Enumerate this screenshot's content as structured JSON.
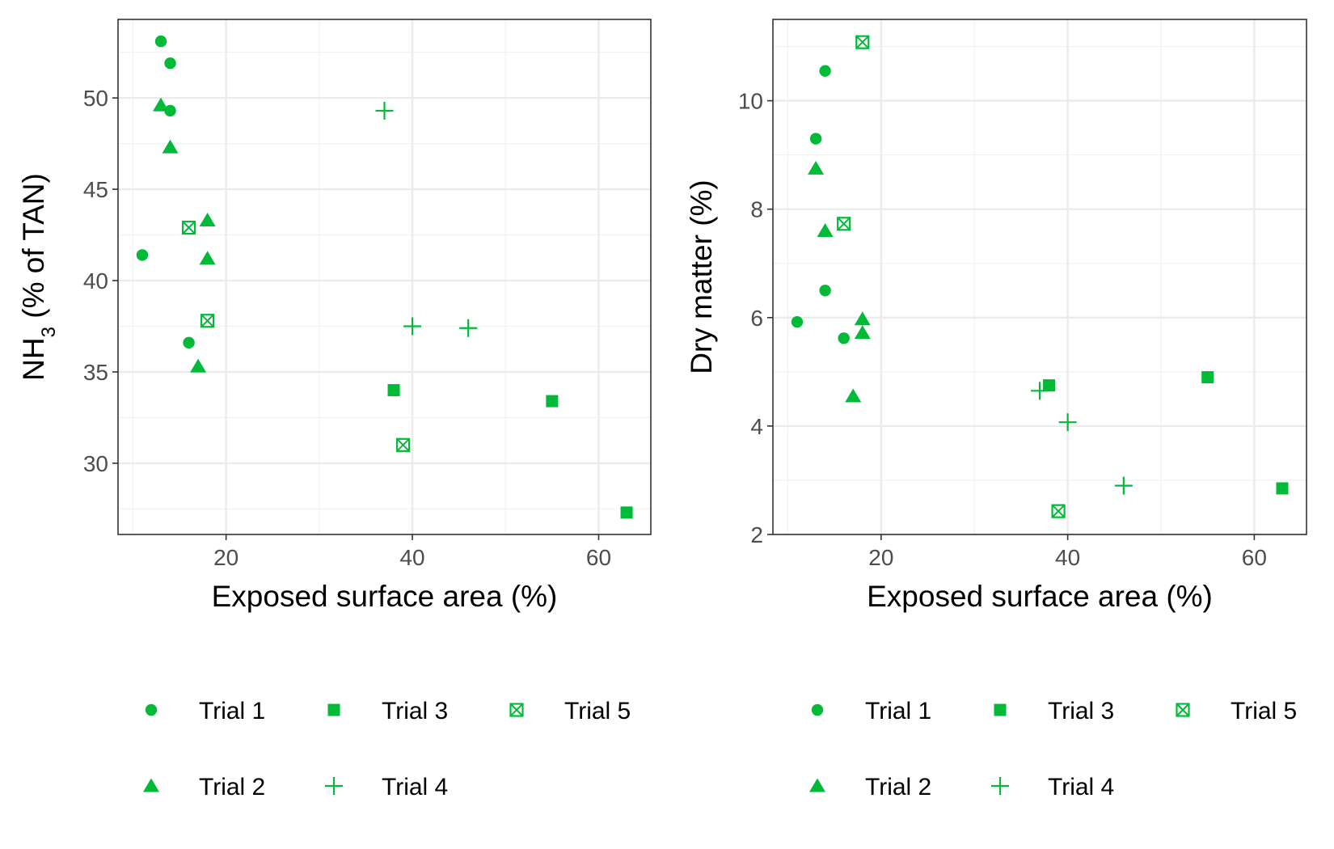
{
  "colors": {
    "points": "#00BA38"
  },
  "legend_title": "",
  "legend": [
    {
      "name": "Trial 1",
      "shape": "circle"
    },
    {
      "name": "Trial 3",
      "shape": "square"
    },
    {
      "name": "Trial 5",
      "shape": "square-cross"
    },
    {
      "name": "Trial 2",
      "shape": "triangle"
    },
    {
      "name": "Trial 4",
      "shape": "plus"
    }
  ],
  "chart_data": [
    {
      "type": "scatter",
      "title": "",
      "xlabel": "Exposed surface area (%)",
      "ylabel": {
        "main": "NH",
        "sub": "3",
        "rest": " (% of TAN)"
      },
      "xlim": [
        8.4,
        65.6
      ],
      "ylim": [
        26.1,
        54.3
      ],
      "xticks": [
        20,
        40,
        60
      ],
      "xminor": [
        10,
        30,
        50
      ],
      "yticks": [
        30,
        35,
        40,
        45,
        50
      ],
      "yminor": [
        27.5,
        32.5,
        37.5,
        42.5,
        47.5,
        52.5
      ],
      "grid": true,
      "legend_position": "bottom",
      "series": [
        {
          "name": "Trial 1",
          "shape": "circle",
          "x": [
            13,
            14,
            14,
            11,
            16
          ],
          "y": [
            53.1,
            51.9,
            49.3,
            41.4,
            36.6
          ]
        },
        {
          "name": "Trial 2",
          "shape": "triangle",
          "x": [
            13,
            14,
            18,
            18,
            17
          ],
          "y": [
            49.6,
            47.3,
            43.3,
            41.2,
            35.3
          ]
        },
        {
          "name": "Trial 3",
          "shape": "square",
          "x": [
            38,
            55,
            63
          ],
          "y": [
            34.0,
            33.4,
            27.3
          ]
        },
        {
          "name": "Trial 4",
          "shape": "plus",
          "x": [
            37,
            40,
            46
          ],
          "y": [
            49.3,
            37.5,
            37.4
          ]
        },
        {
          "name": "Trial 5",
          "shape": "square-cross",
          "x": [
            16,
            18,
            39
          ],
          "y": [
            42.9,
            37.8,
            31.0
          ]
        }
      ]
    },
    {
      "type": "scatter",
      "title": "",
      "xlabel": "Exposed surface area (%)",
      "ylabel": {
        "main": "Dry matter (%)",
        "sub": "",
        "rest": ""
      },
      "xlim": [
        8.4,
        65.6
      ],
      "ylim": [
        2.0,
        11.5
      ],
      "xticks": [
        20,
        40,
        60
      ],
      "xminor": [
        10,
        30,
        50
      ],
      "yticks": [
        2,
        4,
        6,
        8,
        10
      ],
      "yminor": [
        3,
        5,
        7,
        9,
        11
      ],
      "grid": true,
      "legend_position": "bottom",
      "series": [
        {
          "name": "Trial 1",
          "shape": "circle",
          "x": [
            14,
            13,
            14,
            11,
            16
          ],
          "y": [
            10.55,
            9.3,
            6.5,
            5.92,
            5.62
          ]
        },
        {
          "name": "Trial 2",
          "shape": "triangle",
          "x": [
            13,
            14,
            18,
            18,
            17
          ],
          "y": [
            8.75,
            7.6,
            5.97,
            5.72,
            4.55
          ]
        },
        {
          "name": "Trial 3",
          "shape": "square",
          "x": [
            38,
            55,
            63
          ],
          "y": [
            4.75,
            4.9,
            2.85
          ]
        },
        {
          "name": "Trial 4",
          "shape": "plus",
          "x": [
            37,
            40,
            46
          ],
          "y": [
            4.65,
            4.07,
            2.9
          ]
        },
        {
          "name": "Trial 5",
          "shape": "square-cross",
          "x": [
            18,
            16,
            39
          ],
          "y": [
            11.08,
            7.73,
            2.43
          ]
        }
      ]
    }
  ]
}
